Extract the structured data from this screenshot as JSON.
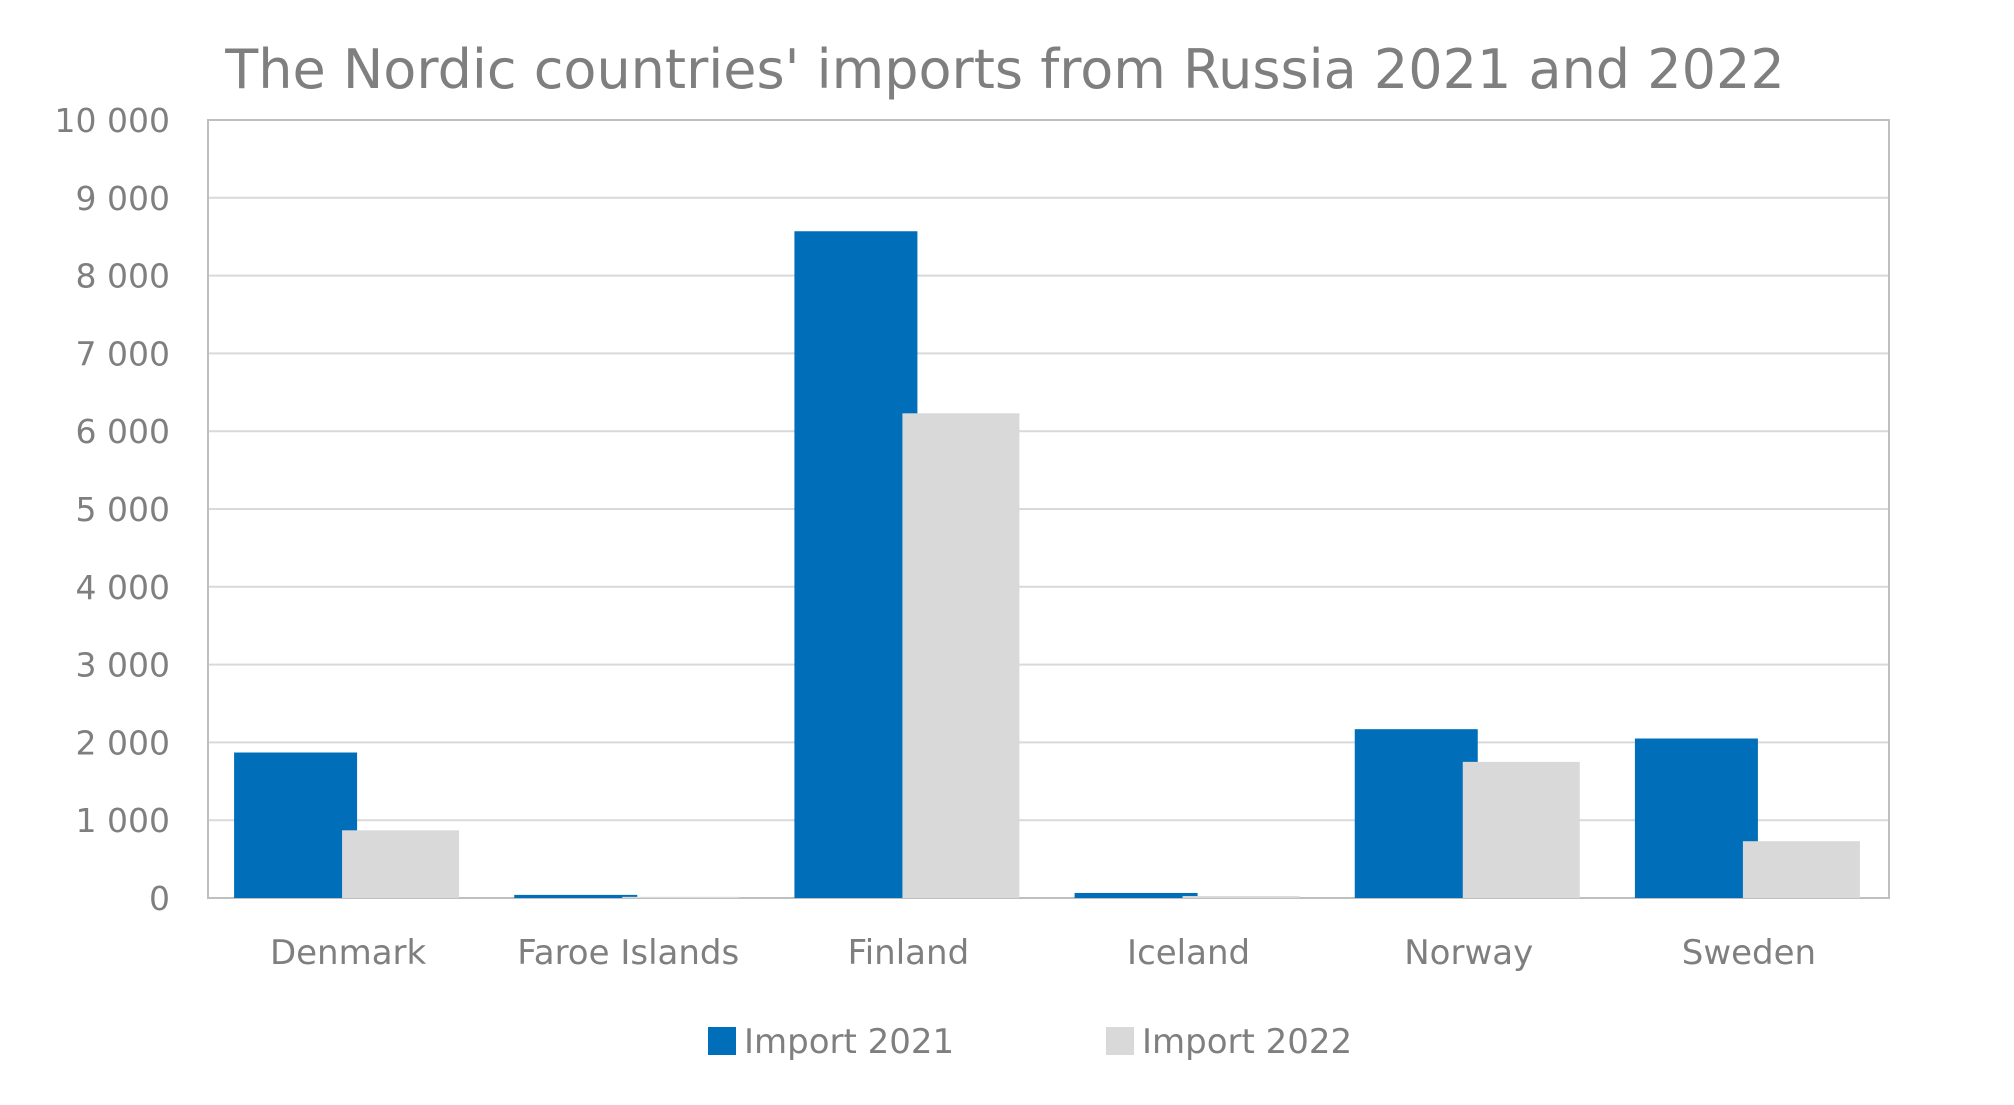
{
  "chart_data": {
    "type": "bar",
    "title": "The Nordic countries' imports from Russia 2021 and 2022",
    "xlabel": "",
    "ylabel": "",
    "categories": [
      "Denmark",
      "Faroe Islands",
      "Finland",
      "Iceland",
      "Norway",
      "Sweden"
    ],
    "series": [
      {
        "name": "Import 2021",
        "color": "#006EB8",
        "values": [
          1870,
          40,
          8570,
          65,
          2170,
          2050
        ]
      },
      {
        "name": "Import 2022",
        "color": "#D9D9D9",
        "values": [
          870,
          15,
          6230,
          25,
          1750,
          730
        ]
      }
    ],
    "ylim": [
      0,
      10000
    ],
    "yticks": [
      0,
      1000,
      2000,
      3000,
      4000,
      5000,
      6000,
      7000,
      8000,
      9000,
      10000
    ],
    "ytick_labels": [
      "0",
      "1 000",
      "2 000",
      "3 000",
      "4 000",
      "5 000",
      "6 000",
      "7 000",
      "8 000",
      "9 000",
      "10 000"
    ],
    "grid": true,
    "legend_position": "bottom"
  }
}
